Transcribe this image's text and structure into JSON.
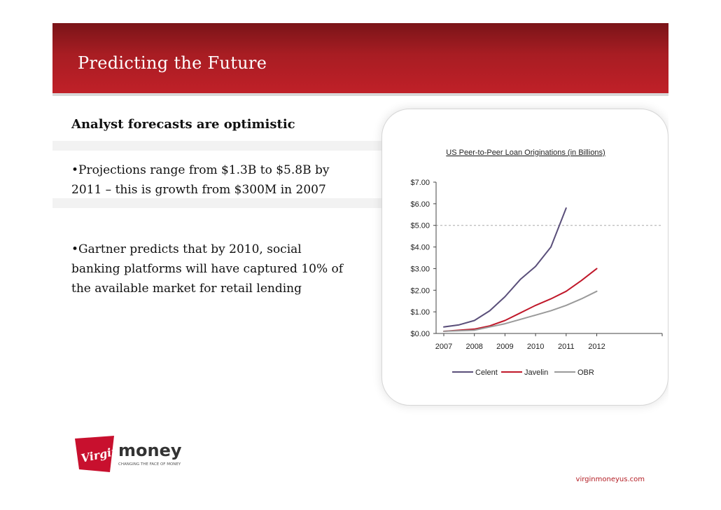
{
  "slide": {
    "title": "Predicting the Future",
    "subtitle": "Analyst forecasts are optimistic",
    "bullets": [
      "•Projections range from $1.3B to $5.8B by 2011 – this is growth from $300M in 2007",
      "•Gartner predicts that by 2010, social banking platforms will have captured 10% of the available market for retail lending"
    ],
    "footer_url": "virginmoneyus.com",
    "logo": {
      "text_main": "money",
      "text_script": "Virgin",
      "tagline": "CHANGING THE FACE OF MONEY"
    }
  },
  "chart_data": {
    "type": "line",
    "title": "US Peer-to-Peer Loan Originations (in Billions)",
    "categories": [
      "2007",
      "2008",
      "2009",
      "2010",
      "2011",
      "2012"
    ],
    "y_tick_labels": [
      "$0.00",
      "$1.00",
      "$2.00",
      "$3.00",
      "$4.00",
      "$5.00",
      "$6.00",
      "$7.00"
    ],
    "ylim": [
      0,
      7
    ],
    "dashed_gridline_at": 5,
    "legend_position": "bottom",
    "series": [
      {
        "name": "Celent",
        "color": "#5a4f7a",
        "x": [
          2007,
          2007.5,
          2008,
          2008.5,
          2009,
          2009.5,
          2010,
          2010.5,
          2011
        ],
        "values": [
          0.3,
          0.4,
          0.6,
          1.05,
          1.7,
          2.5,
          3.1,
          4.0,
          5.8
        ]
      },
      {
        "name": "Javelin",
        "color": "#c0182a",
        "x": [
          2007,
          2008,
          2008.5,
          2009,
          2009.5,
          2010,
          2010.5,
          2011,
          2011.5,
          2012
        ],
        "values": [
          0.1,
          0.2,
          0.35,
          0.6,
          0.95,
          1.3,
          1.6,
          1.95,
          2.45,
          3.0
        ]
      },
      {
        "name": "OBR",
        "color": "#9a9a9a",
        "x": [
          2007,
          2008,
          2008.5,
          2009,
          2009.5,
          2010,
          2010.5,
          2011,
          2011.5,
          2012
        ],
        "values": [
          0.1,
          0.15,
          0.3,
          0.45,
          0.65,
          0.85,
          1.05,
          1.3,
          1.6,
          1.95
        ]
      }
    ]
  }
}
